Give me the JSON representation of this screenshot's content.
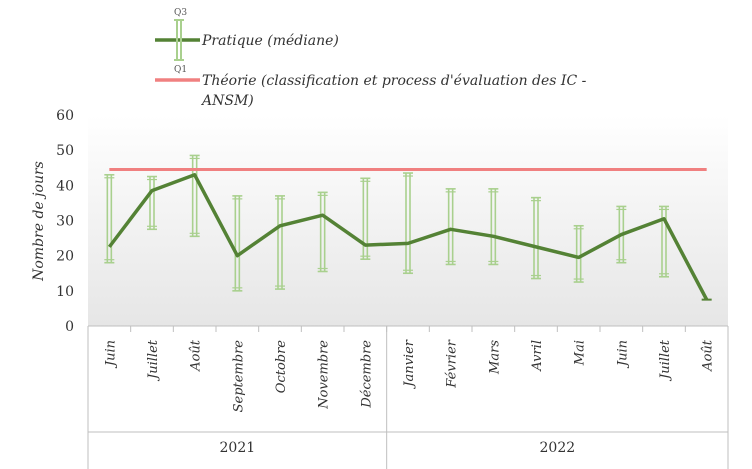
{
  "chart_data": {
    "type": "line",
    "ylabel": "Nombre de jours",
    "ylim": [
      0,
      60
    ],
    "yticks": [
      0,
      10,
      20,
      30,
      40,
      50,
      60
    ],
    "categories": [
      "Juin",
      "Juillet",
      "Août",
      "Septembre",
      "Octobre",
      "Novembre",
      "Décembre",
      "Janvier",
      "Février",
      "Mars",
      "Avril",
      "Mai",
      "Juin",
      "Juillet",
      "Août"
    ],
    "groups": [
      {
        "label": "2021",
        "count": 7
      },
      {
        "label": "2022",
        "count": 8
      }
    ],
    "series": [
      {
        "name": "Pratique (médiane)",
        "color": "#548235",
        "values": [
          22.5,
          38.5,
          43,
          20,
          28.5,
          31.5,
          23,
          23.5,
          27.5,
          25.5,
          22.5,
          19.5,
          26,
          30.5,
          7.5
        ],
        "q1": [
          18,
          27.5,
          25.5,
          10,
          10.5,
          15.5,
          19,
          15,
          17.5,
          17.5,
          13.5,
          12.5,
          18,
          14,
          7.5
        ],
        "q3": [
          43,
          42.5,
          48.5,
          37,
          37,
          38,
          42,
          43.5,
          39,
          39,
          36.5,
          28.5,
          34,
          34,
          7.5
        ]
      },
      {
        "name": "Théorie (classification et process d'évaluation des IC - ANSM)",
        "color": "#f08080",
        "values": [
          44.5,
          44.5,
          44.5,
          44.5,
          44.5,
          44.5,
          44.5,
          44.5,
          44.5,
          44.5,
          44.5,
          44.5,
          44.5,
          44.5,
          44.5
        ]
      }
    ],
    "legend": {
      "q3_label": "Q3",
      "q1_label": "Q1",
      "line1": "Pratique (médiane)",
      "line2a": "Théorie (classification et process d'évaluation des IC -",
      "line2b": "ANSM)"
    },
    "grid": false
  }
}
